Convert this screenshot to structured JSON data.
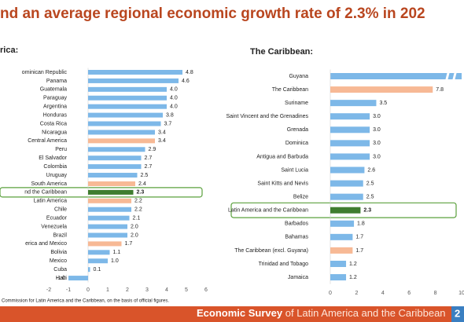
{
  "title": "nd an average regional economic growth rate of 2.3% in 202",
  "source": "Commission for Latin America and the Caribbean, on the basis of official figures.",
  "footer": {
    "bold": "Economic Survey",
    "rest": "of Latin America and the Caribbean",
    "page": "2"
  },
  "chart_data": [
    {
      "type": "hbar",
      "title": "rica:",
      "categories": [
        "ominican Republic",
        "Panama",
        "Guatemala",
        "Paraguay",
        "Argentina",
        "Honduras",
        "Costa Rica",
        "Nicaragua",
        "Central America",
        "Peru",
        "El Salvador",
        "Colombia",
        "Uruguay",
        "South America",
        "nd the Caribbean",
        "Latin America",
        "Chile",
        "Ecuador",
        "Venezuela",
        "Brazil",
        "erica and Mexico",
        "Bolivia",
        "Mexico",
        "Cuba",
        "Haiti"
      ],
      "values": [
        4.8,
        4.6,
        4.0,
        4.0,
        4.0,
        3.8,
        3.7,
        3.4,
        3.4,
        2.9,
        2.7,
        2.7,
        2.5,
        2.4,
        2.3,
        2.2,
        2.2,
        2.1,
        2.0,
        2.0,
        1.7,
        1.1,
        1.0,
        0.1,
        -1.0
      ],
      "value_labels": [
        "4.8",
        "4.6",
        "4.0",
        "4.0",
        "4.0",
        "3.8",
        "3.7",
        "3.4",
        "3.4",
        "2.9",
        "2.7",
        "2.7",
        "2.5",
        "2.4",
        "2.3",
        "2.2",
        "2.2",
        "2.1",
        "2.0",
        "2.0",
        "1.7",
        "1.1",
        "1.0",
        "0.1",
        "-1.0"
      ],
      "colors": [
        "#7db8e8",
        "#7db8e8",
        "#7db8e8",
        "#7db8e8",
        "#7db8e8",
        "#7db8e8",
        "#7db8e8",
        "#7db8e8",
        "#f7b995",
        "#7db8e8",
        "#7db8e8",
        "#7db8e8",
        "#7db8e8",
        "#f7b995",
        "#3f7d2f",
        "#f7b995",
        "#7db8e8",
        "#7db8e8",
        "#7db8e8",
        "#7db8e8",
        "#f7b995",
        "#7db8e8",
        "#7db8e8",
        "#7db8e8",
        "#7db8e8"
      ],
      "highlight": 14,
      "xlim": [
        -2,
        6
      ],
      "xticks": [
        -2,
        -1,
        0,
        1,
        2,
        3,
        4,
        5,
        6
      ]
    },
    {
      "type": "hbar",
      "title": "The Caribbean:",
      "categories": [
        "Guyana",
        "The Caribbean",
        "Suriname",
        "Saint Vincent and the Grenadines",
        "Grenada",
        "Dominica",
        "Antigua and Barbuda",
        "Saint Lucia",
        "Saint Kitts and Nevis",
        "Belize",
        "Latin America and the Caribbean",
        "Barbados",
        "Bahamas",
        "The Caribbean (excl. Guyana)",
        "Trinidad and Tobago",
        "Jamaica"
      ],
      "values": [
        null,
        7.8,
        3.5,
        3.0,
        3.0,
        3.0,
        3.0,
        2.6,
        2.5,
        2.5,
        2.3,
        1.8,
        1.7,
        1.7,
        1.2,
        1.2
      ],
      "value_labels": [
        null,
        "7.8",
        "3.5",
        "3.0",
        "3.0",
        "3.0",
        "3.0",
        "2.6",
        "2.5",
        "2.5",
        "2.3",
        "1.8",
        "1.7",
        "1.7",
        "1.2",
        "1.2"
      ],
      "colors": [
        "#7db8e8",
        "#f7b995",
        "#7db8e8",
        "#7db8e8",
        "#7db8e8",
        "#7db8e8",
        "#7db8e8",
        "#7db8e8",
        "#7db8e8",
        "#7db8e8",
        "#3f7d2f",
        "#7db8e8",
        "#7db8e8",
        "#f7b995",
        "#7db8e8",
        "#7db8e8"
      ],
      "highlight": 10,
      "xlim": [
        0,
        10
      ],
      "xticks": [
        0,
        2,
        4,
        6,
        8,
        10
      ]
    }
  ]
}
